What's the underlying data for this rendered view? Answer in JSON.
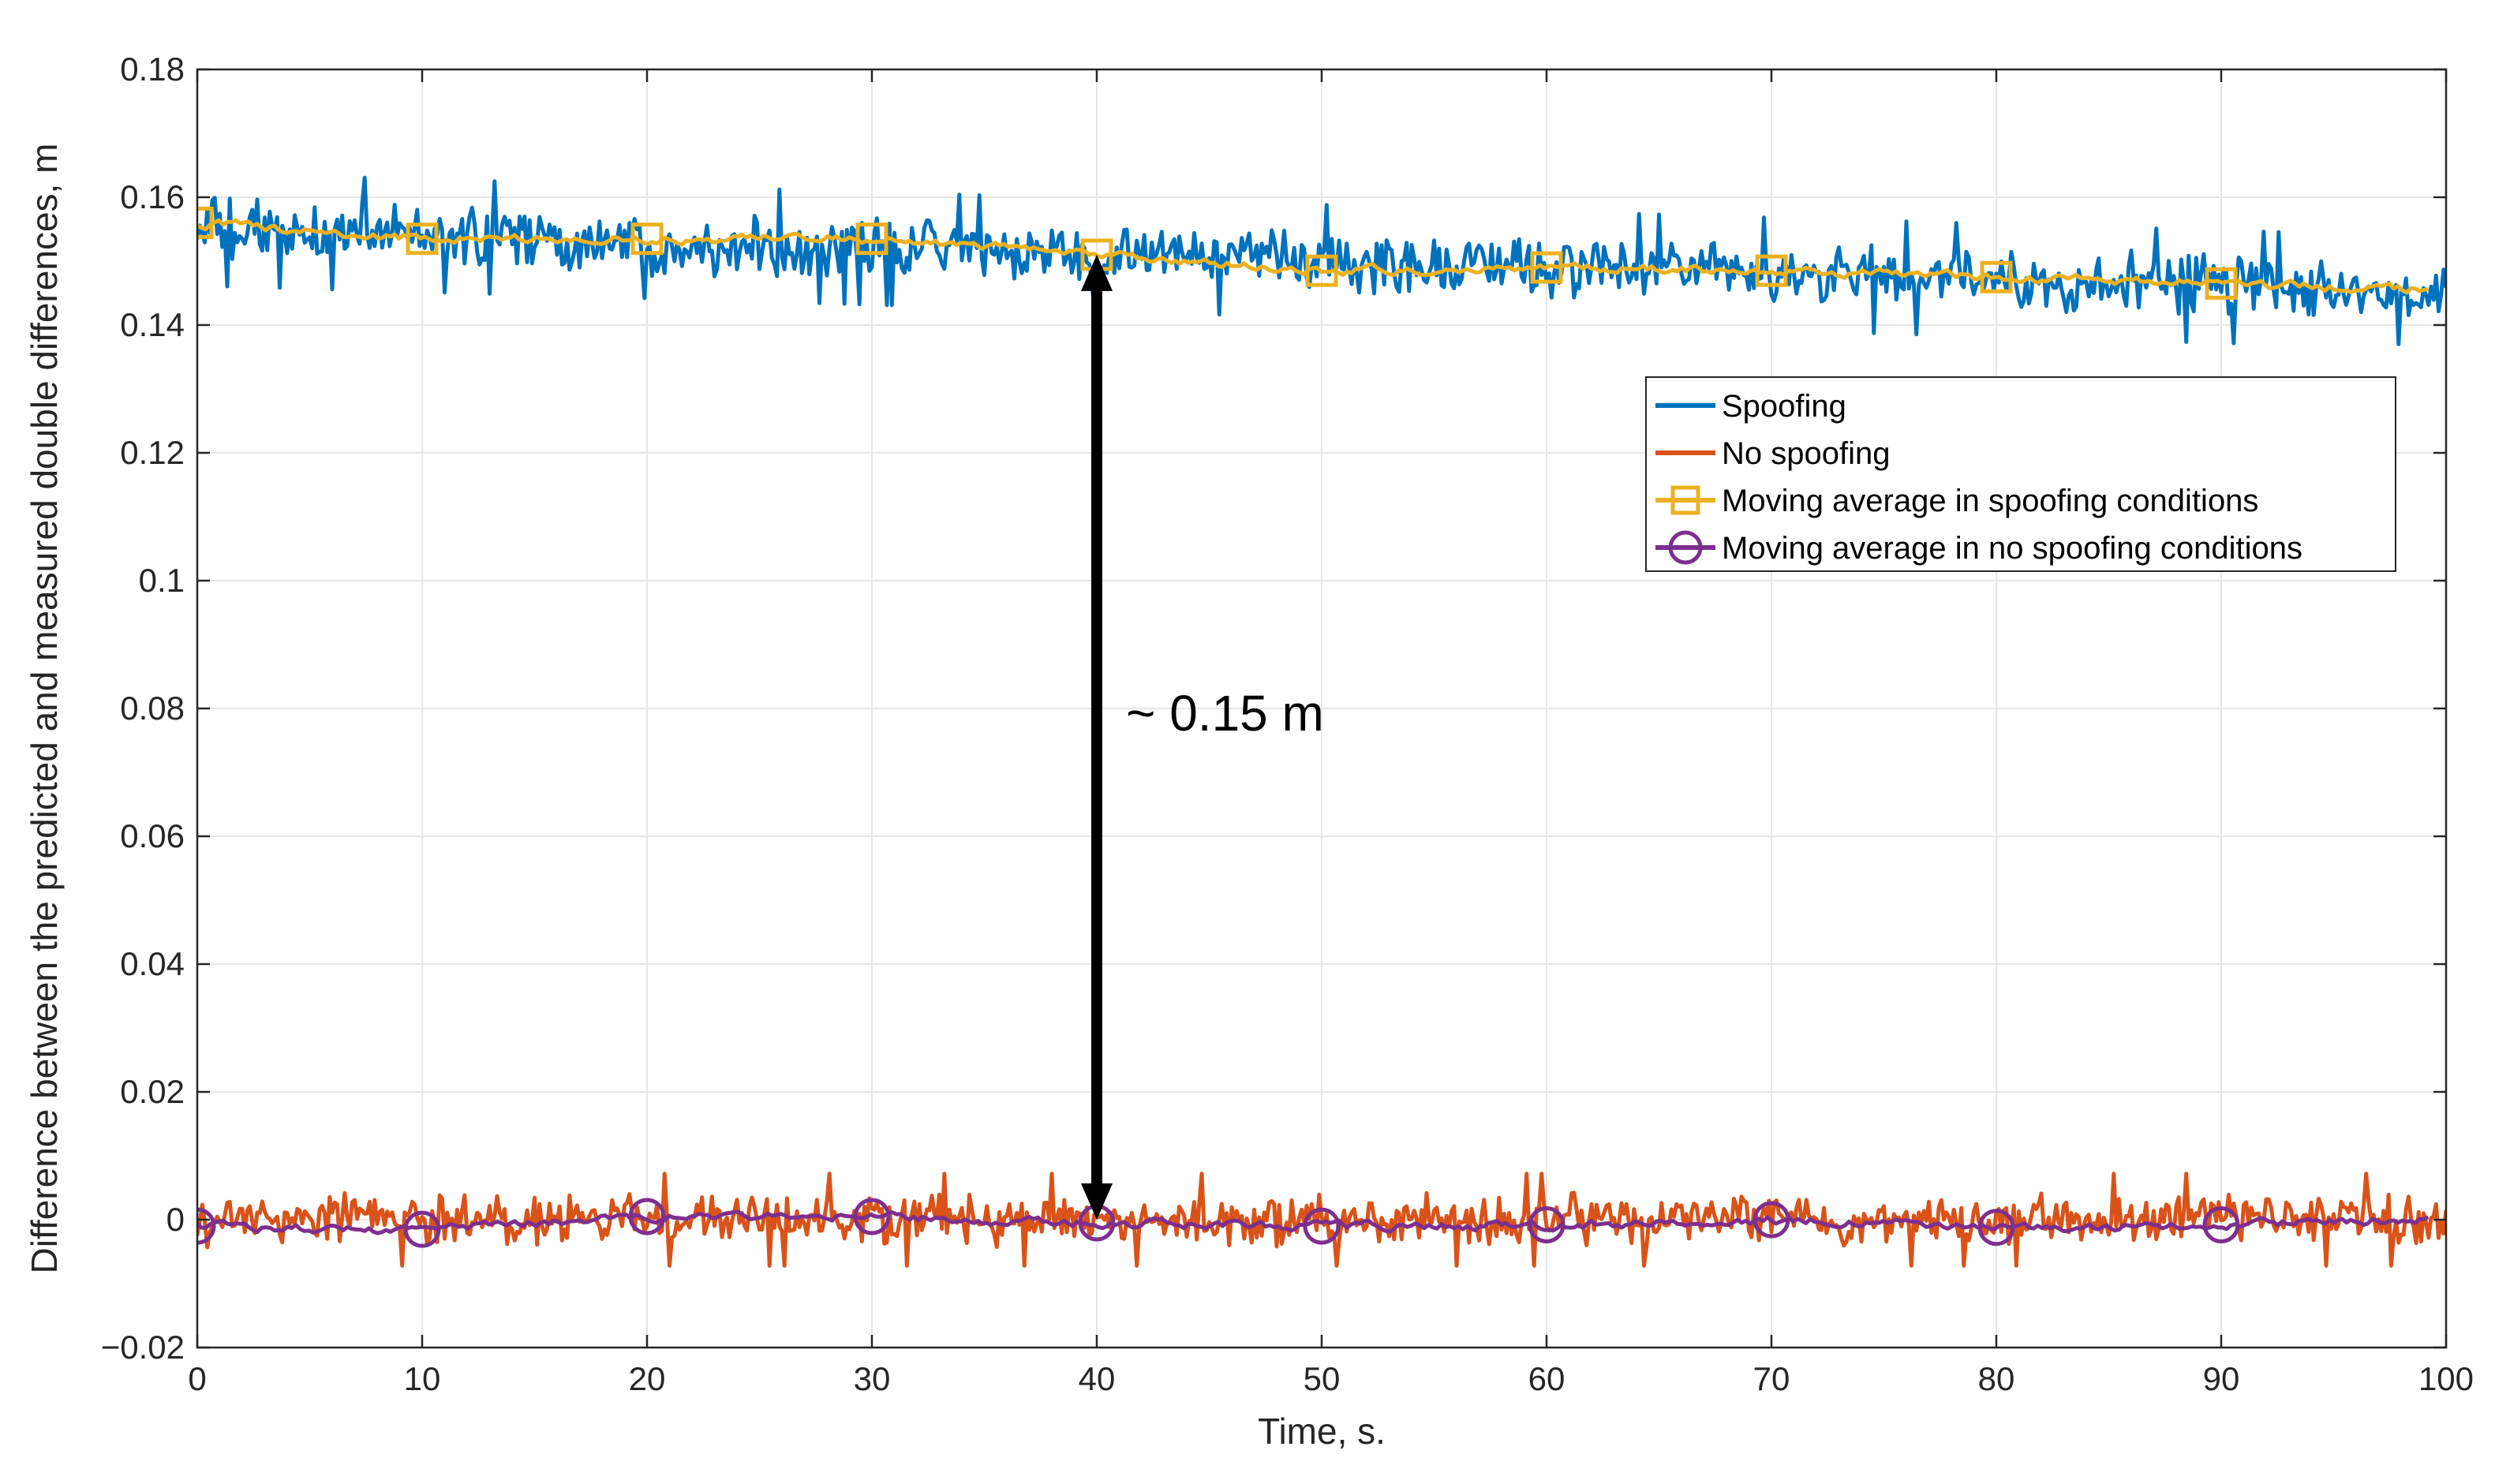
{
  "chart_data": {
    "type": "line",
    "title": "",
    "xlabel": "Time, s.",
    "ylabel": "Difference between the predicted and measured double differences, m",
    "xlim": [
      0,
      100
    ],
    "ylim": [
      -0.02,
      0.18
    ],
    "xticks": [
      0,
      10,
      20,
      30,
      40,
      50,
      60,
      70,
      80,
      90,
      100
    ],
    "xtick_labels": [
      "0",
      "10",
      "20",
      "30",
      "40",
      "50",
      "60",
      "70",
      "80",
      "90",
      "100"
    ],
    "yticks": [
      -0.02,
      0,
      0.02,
      0.04,
      0.06,
      0.08,
      0.1,
      0.12,
      0.14,
      0.16,
      0.18
    ],
    "ytick_labels": [
      "−0.02",
      "0",
      "0.02",
      "0.04",
      "0.06",
      "0.08",
      "0.1",
      "0.12",
      "0.14",
      "0.16",
      "0.18"
    ],
    "grid": true,
    "legend_position": "right, upper-middle",
    "series": [
      {
        "name": "Spoofing",
        "kind": "noisy",
        "color": "#0072BD",
        "trend_start": 0.155,
        "trend_end": 0.145,
        "noise_amplitude": 0.0055,
        "peak_max": 0.165,
        "trough_min": 0.137
      },
      {
        "name": "No spoofing",
        "kind": "noisy",
        "color": "#D95319",
        "trend_start": 0.0,
        "trend_end": 0.0,
        "noise_amplitude": 0.0045,
        "peak_max": 0.0135,
        "trough_min": -0.011
      },
      {
        "name": "Moving average in spoofing conditions",
        "kind": "moving-average",
        "color": "#EDB120",
        "marker": "square",
        "x": [
          0,
          10,
          20,
          30,
          40,
          50,
          60,
          70,
          80,
          90,
          99.2
        ],
        "values": [
          0.156,
          0.1535,
          0.1535,
          0.1535,
          0.151,
          0.1485,
          0.149,
          0.1485,
          0.1475,
          0.1465,
          0.1455
        ],
        "marker_x": [
          0,
          10,
          20,
          30,
          40,
          50,
          60,
          70,
          80,
          90
        ]
      },
      {
        "name": "Moving average in no spoofing conditions",
        "kind": "moving-average",
        "color": "#7E2F8E",
        "marker": "circle",
        "x": [
          0,
          10,
          20,
          30,
          40,
          50,
          60,
          70,
          80,
          90,
          99.2
        ],
        "values": [
          -0.001,
          -0.0015,
          0.0005,
          0.0005,
          -0.0005,
          -0.001,
          -0.0008,
          0.0,
          -0.0012,
          -0.0008,
          0.0
        ],
        "marker_x": [
          0,
          10,
          20,
          30,
          40,
          50,
          60,
          70,
          80,
          90
        ]
      }
    ],
    "annotations": [
      {
        "type": "double-arrow",
        "x": 40,
        "y_from": 0.0,
        "y_to": 0.151,
        "label": "~ 0.15 m",
        "label_x": 41.3,
        "label_y": 0.079
      }
    ]
  }
}
